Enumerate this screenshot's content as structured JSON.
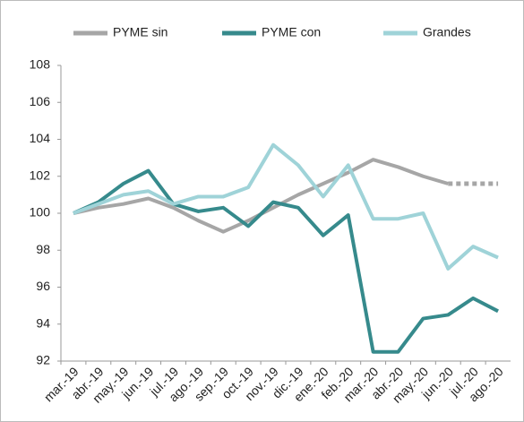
{
  "chart_data": {
    "type": "line",
    "categories": [
      "mar.-19",
      "abr.-19",
      "may.-19",
      "jun.-19",
      "jul.-19",
      "ago.-19",
      "sep.-19",
      "oct.-19",
      "nov.-19",
      "dic.-19",
      "ene.-20",
      "feb.-20",
      "mar.-20",
      "abr.-20",
      "may.-20",
      "jun.-20",
      "jul.-20",
      "ago.-20"
    ],
    "series": [
      {
        "name": "PYME sin",
        "color": "#a6a6a6",
        "dashed_after": "jun.-20",
        "values": [
          100,
          100.3,
          100.5,
          100.8,
          100.3,
          99.6,
          99.0,
          99.6,
          100.3,
          101.0,
          101.6,
          102.2,
          102.9,
          102.5,
          102.0,
          101.6,
          101.6,
          101.6
        ]
      },
      {
        "name": "PYME con",
        "color": "#368a8c",
        "values": [
          100,
          100.6,
          101.6,
          102.3,
          100.5,
          100.1,
          100.3,
          99.3,
          100.6,
          100.3,
          98.8,
          99.9,
          92.5,
          92.5,
          94.3,
          94.5,
          95.4,
          94.7
        ]
      },
      {
        "name": "Grandes",
        "color": "#9fd3d8",
        "values": [
          100,
          100.5,
          101.0,
          101.2,
          100.5,
          100.9,
          100.9,
          101.4,
          103.7,
          102.6,
          100.9,
          102.6,
          99.7,
          99.7,
          100.0,
          97.0,
          98.2,
          97.6
        ]
      }
    ],
    "ylim": [
      92,
      108
    ],
    "yticks": [
      92,
      94,
      96,
      98,
      100,
      102,
      104,
      106,
      108
    ],
    "grid": false,
    "legend": "top"
  }
}
